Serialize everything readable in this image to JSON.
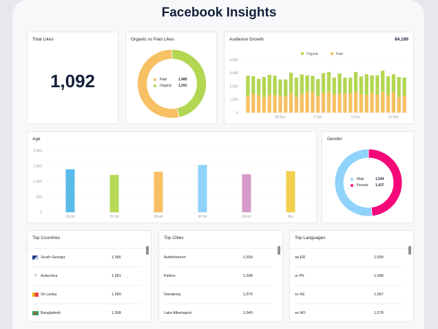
{
  "page": {
    "title": "Facebook Insights"
  },
  "total_likes": {
    "title": "Total Likes",
    "value": "1,092"
  },
  "organic_vs_paid": {
    "title": "Organic vs Paid Likes",
    "legend": [
      {
        "label": "Paid",
        "value": "1,480",
        "color": "#f7c064"
      },
      {
        "label": "Organic",
        "value": "1,291",
        "color": "#b3d653"
      }
    ]
  },
  "audience_growth": {
    "title": "Audience Growth",
    "total": "84,189"
  },
  "age": {
    "title": "Age"
  },
  "gender": {
    "title": "Gender",
    "legend": [
      {
        "label": "Male",
        "value": "1,544",
        "color": "#8fd3fb"
      },
      {
        "label": "Female",
        "value": "1,437",
        "color": "#f4087a"
      }
    ]
  },
  "top_countries": {
    "title": "Top Countries",
    "rows": [
      {
        "name": "South Georgia",
        "value": "1,586",
        "flag": "south-georgia-flag"
      },
      {
        "name": "Antarctica",
        "value": "1,581",
        "flag": "unknown-flag"
      },
      {
        "name": "Sri Lanka",
        "value": "1,580",
        "flag": "sri-lanka-flag"
      },
      {
        "name": "Bangladesh",
        "value": "1,568",
        "flag": "bangladesh-flag"
      }
    ]
  },
  "top_cities": {
    "title": "Top Cities",
    "rows": [
      {
        "name": "Aufderharton",
        "value": "1,599"
      },
      {
        "name": "Kielton",
        "value": "1,598"
      },
      {
        "name": "Danaborg",
        "value": "1,579"
      },
      {
        "name": "Lake Albertaport",
        "value": "1,540"
      }
    ]
  },
  "top_languages": {
    "title": "Top Languages",
    "rows": [
      {
        "name": "aa ER",
        "value": "1,599"
      },
      {
        "name": "ur PK",
        "value": "1,588"
      },
      {
        "name": "so KE",
        "value": "1,587"
      },
      {
        "name": "se NO",
        "value": "1,578"
      }
    ]
  },
  "chart_data": [
    {
      "id": "organic_vs_paid",
      "type": "pie",
      "title": "Organic vs Paid Likes",
      "labels": [
        "Paid",
        "Organic"
      ],
      "values": [
        1480,
        1291
      ],
      "colors": [
        "#f7c064",
        "#b3d653"
      ]
    },
    {
      "id": "audience_growth",
      "type": "bar",
      "stacked": true,
      "title": "Audience Growth",
      "xlabel": "",
      "ylabel": "",
      "ylim": [
        0,
        4000
      ],
      "yticks": [
        "0",
        "1,000",
        "2,000",
        "3,000",
        "4,000"
      ],
      "xtick_labels": [
        {
          "index": 6,
          "label": "25 Nov"
        },
        {
          "index": 13,
          "label": "2 Dec"
        },
        {
          "index": 20,
          "label": "9 Dec"
        },
        {
          "index": 27,
          "label": "16 Dec"
        }
      ],
      "legend": "top-center",
      "series": [
        {
          "name": "Paid",
          "color": "#f7c064",
          "values": [
            1280,
            1430,
            1330,
            1180,
            1340,
            1340,
            1280,
            1220,
            1490,
            1190,
            1420,
            1540,
            1550,
            1240,
            1500,
            1550,
            1380,
            1450,
            1450,
            1450,
            1550,
            1410,
            1350,
            1500,
            1350,
            1570,
            1340,
            1550,
            1180,
            1280
          ]
        },
        {
          "name": "Organic",
          "color": "#b3d653",
          "values": [
            1520,
            1320,
            1230,
            1520,
            1520,
            1450,
            1230,
            1290,
            1530,
            1460,
            1460,
            1280,
            1240,
            1300,
            1480,
            1530,
            1270,
            1510,
            1200,
            1200,
            1530,
            1330,
            1560,
            1320,
            1470,
            1600,
            1410,
            1350,
            1520,
            1370
          ]
        }
      ]
    },
    {
      "id": "age",
      "type": "bar",
      "title": "Age",
      "categories": [
        "18-24",
        "25-34",
        "35-44",
        "45-54",
        "55-64",
        "65+"
      ],
      "values": [
        1390,
        1210,
        1310,
        1530,
        1230,
        1330
      ],
      "colors": [
        "#5bbbea",
        "#b6da58",
        "#f7c064",
        "#8fd3fb",
        "#d89ac8",
        "#f2d04e"
      ],
      "ylim": [
        0,
        2000
      ],
      "yticks": [
        "0",
        "500",
        "1,000",
        "1,500",
        "2,000"
      ]
    },
    {
      "id": "gender",
      "type": "pie",
      "title": "Gender",
      "labels": [
        "Male",
        "Female"
      ],
      "values": [
        1544,
        1437
      ],
      "colors": [
        "#8fd3fb",
        "#f4087a"
      ]
    }
  ]
}
